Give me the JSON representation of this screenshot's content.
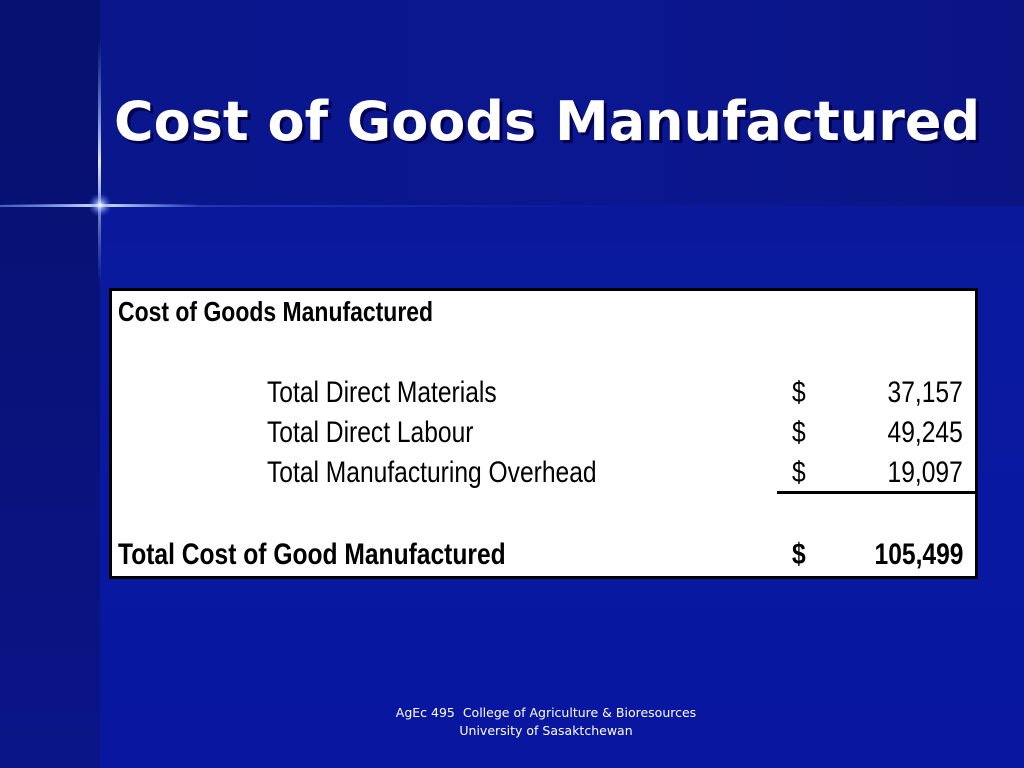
{
  "slide": {
    "title": "Cost of Goods Manufactured"
  },
  "table": {
    "heading": "Cost of Goods Manufactured",
    "rows": [
      {
        "label": "Total Direct Materials",
        "currency": "$",
        "amount": "37,157"
      },
      {
        "label": "Total Direct Labour",
        "currency": "$",
        "amount": "49,245"
      },
      {
        "label": "Total Manufacturing Overhead",
        "currency": "$",
        "amount": "19,097"
      }
    ],
    "total": {
      "label": "Total Cost of Good Manufactured",
      "currency": "$",
      "amount": "105,499"
    }
  },
  "footer": {
    "line1": "AgEc 495  College of Agriculture & Bioresources",
    "line2": "University of Sasaktchewan"
  },
  "colors": {
    "background": "#0a1aa0",
    "title_text": "#ffffff",
    "table_background": "#ffffff",
    "table_border": "#000000"
  }
}
